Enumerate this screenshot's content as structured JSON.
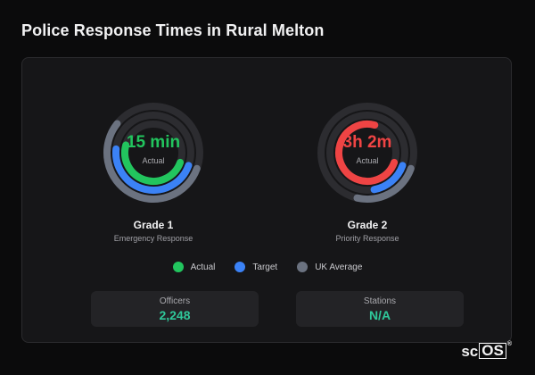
{
  "title": "Police Response Times in Rural Melton",
  "colors": {
    "actual_good": "#22c55e",
    "actual_bad": "#ef4444",
    "target": "#3b82f6",
    "uk_average": "#6b7280",
    "accent": "#2fc89a"
  },
  "gauges": [
    {
      "center_value": "15 min",
      "center_label": "Actual",
      "name": "Grade 1",
      "description": "Emergency Response",
      "actual_color": "#22c55e",
      "rings": {
        "uk_average": 0.6,
        "target": 0.5,
        "actual": 0.53
      }
    },
    {
      "center_value": "3h 2m",
      "center_label": "Actual",
      "name": "Grade 2",
      "description": "Priority Response",
      "actual_color": "#ef4444",
      "rings": {
        "uk_average": 0.25,
        "target": 0.18,
        "actual": 0.8
      }
    }
  ],
  "legend": [
    {
      "label": "Actual",
      "color": "#22c55e"
    },
    {
      "label": "Target",
      "color": "#3b82f6"
    },
    {
      "label": "UK Average",
      "color": "#6b7280"
    }
  ],
  "stats": [
    {
      "label": "Officers",
      "value": "2,248"
    },
    {
      "label": "Stations",
      "value": "N/A"
    }
  ],
  "brand": {
    "text_left": "sc",
    "text_box": "OS",
    "mark": "®"
  }
}
